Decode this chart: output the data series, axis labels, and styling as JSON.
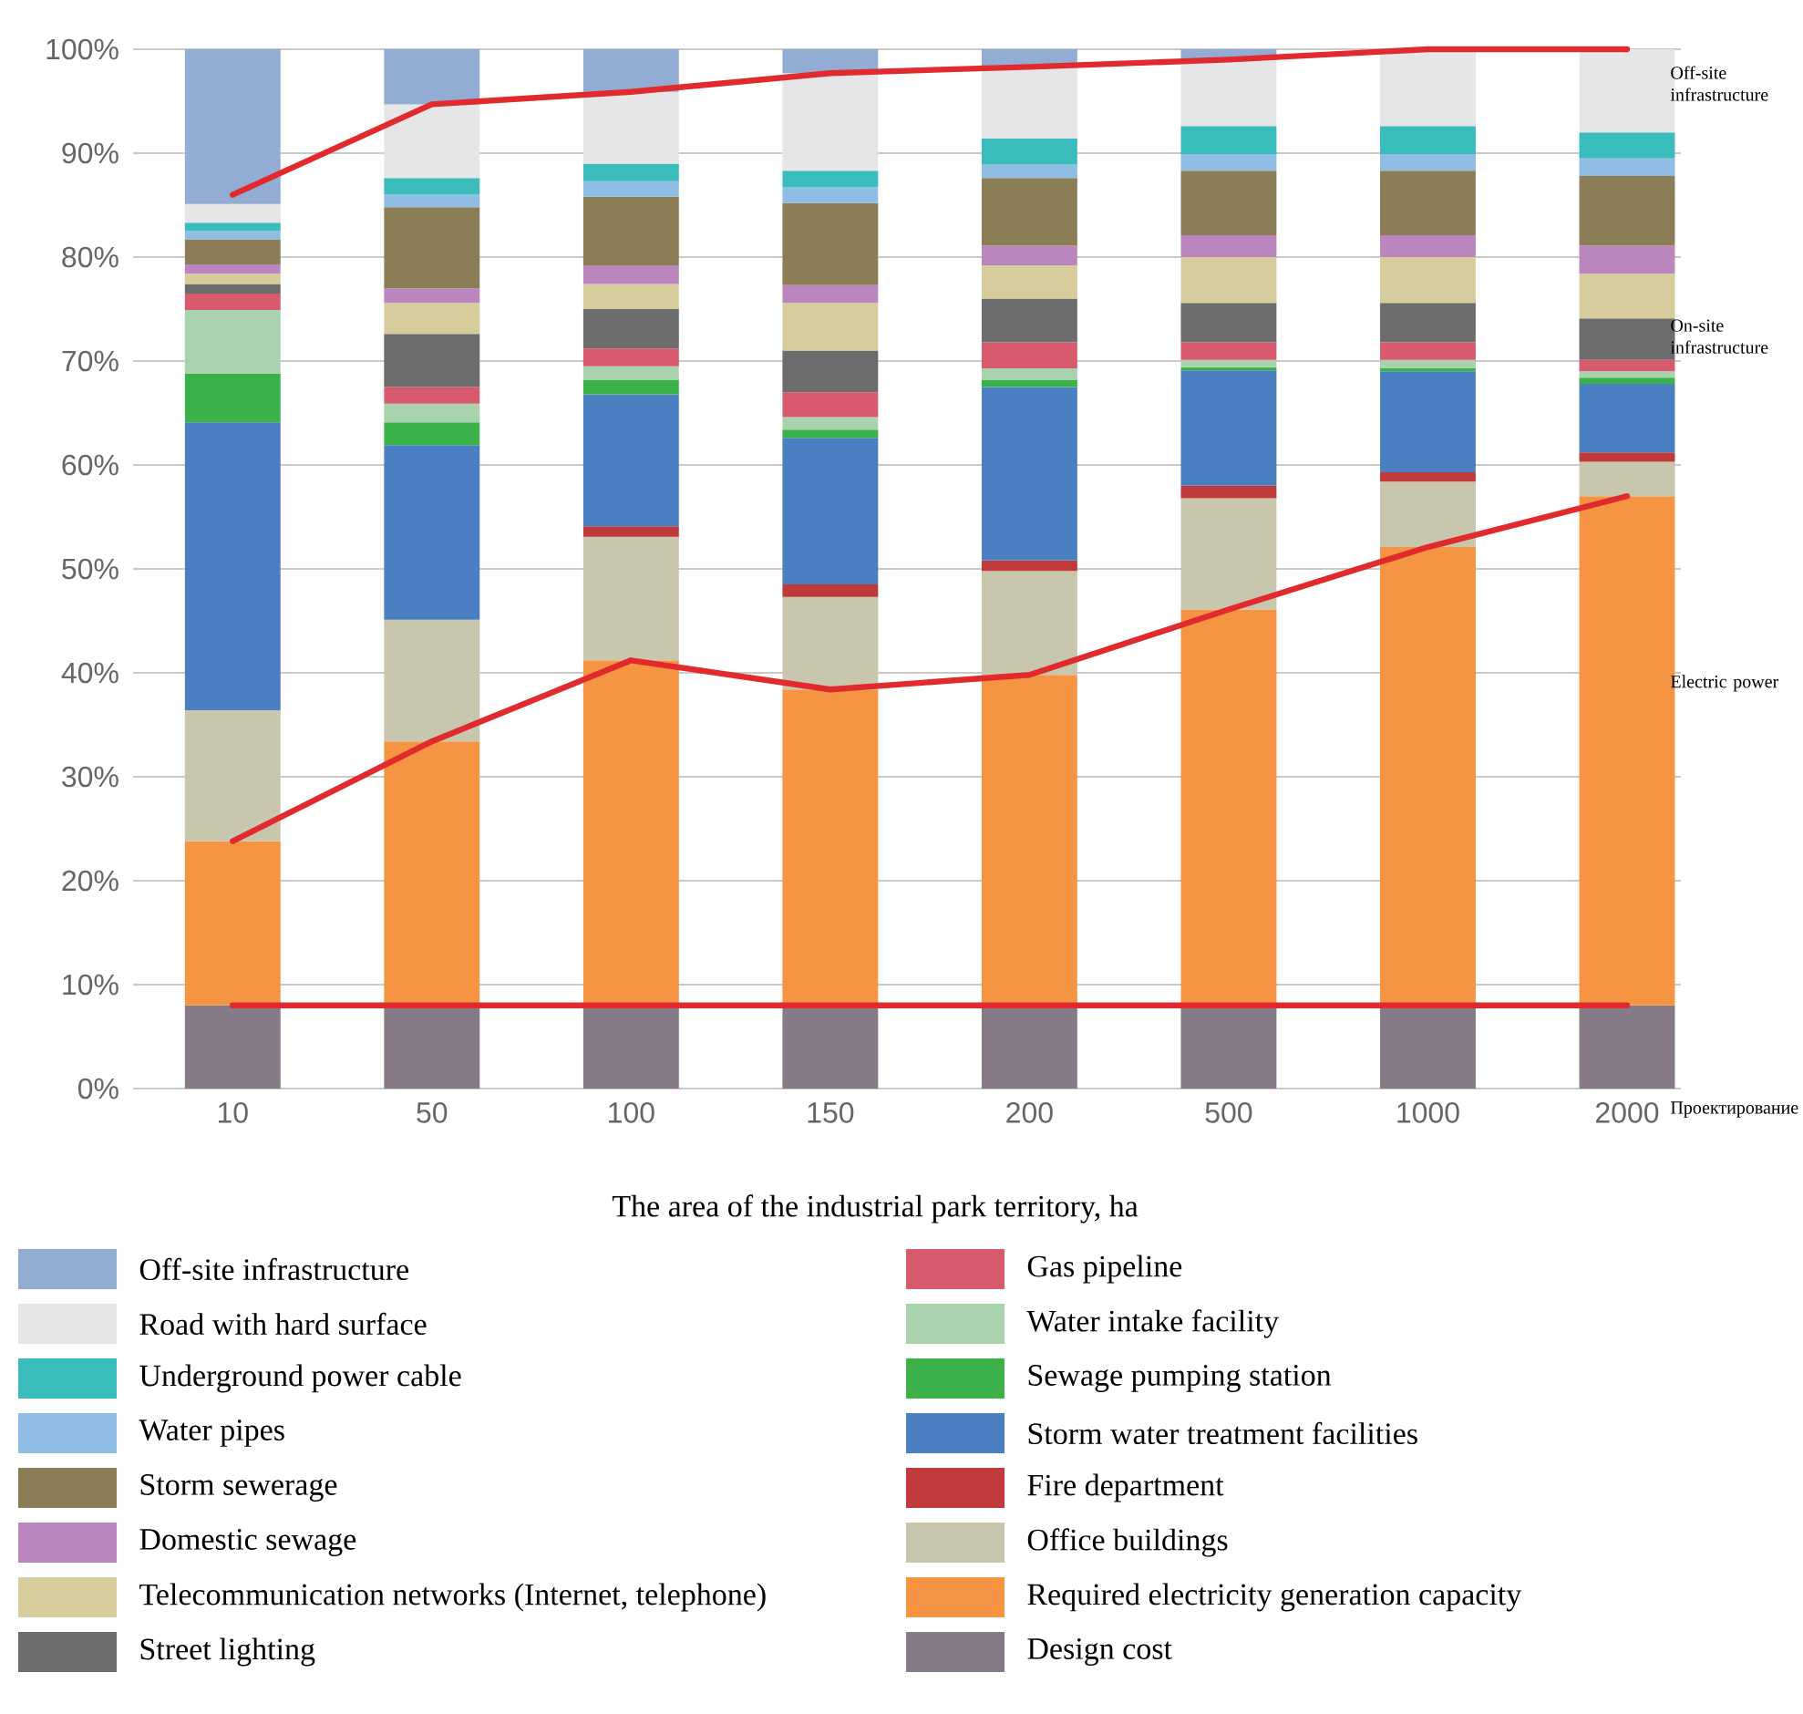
{
  "chart_data": {
    "type": "bar",
    "stacked": true,
    "xlabel": "The area of the industrial park territory, ha",
    "categories": [
      "10",
      "50",
      "100",
      "150",
      "200",
      "500",
      "1000",
      "2000"
    ],
    "ylim": [
      0,
      100
    ],
    "yticks": [
      {
        "value": 0,
        "label": "0%"
      },
      {
        "value": 10,
        "label": "10%"
      },
      {
        "value": 20,
        "label": "20%"
      },
      {
        "value": 30,
        "label": "30%"
      },
      {
        "value": 40,
        "label": "40%"
      },
      {
        "value": 50,
        "label": "50%"
      },
      {
        "value": 60,
        "label": "60%"
      },
      {
        "value": 70,
        "label": "70%"
      },
      {
        "value": 80,
        "label": "80%"
      },
      {
        "value": 90,
        "label": "90%"
      },
      {
        "value": 100,
        "label": "100%"
      }
    ],
    "grid": "y",
    "legend": "bottom",
    "series": [
      {
        "name": "Design cost",
        "color": "#857a85",
        "values": [
          8,
          8,
          8,
          8,
          8,
          8,
          8,
          8
        ]
      },
      {
        "name": "Required electricity generation capacity",
        "color": "#f59443",
        "values": [
          15.8,
          25.4,
          33.2,
          30.4,
          31.8,
          38.1,
          44.1,
          49.0
        ]
      },
      {
        "name": "Office buildings",
        "color": "#c9c6ae",
        "values": [
          12.6,
          11.7,
          11.9,
          8.9,
          10.0,
          10.7,
          6.3,
          3.3
        ]
      },
      {
        "name": "Fire department",
        "color": "#c0393b",
        "values": [
          0,
          0,
          1.0,
          1.2,
          1.0,
          1.2,
          0.9,
          0.9
        ]
      },
      {
        "name": "Storm water treatment facilities",
        "color": "#4a7fc1",
        "values": [
          27.7,
          16.8,
          12.7,
          14.1,
          16.7,
          11.1,
          9.7,
          6.6
        ]
      },
      {
        "name": "Sewage pumping station",
        "color": "#3bb14a",
        "values": [
          4.7,
          2.2,
          1.4,
          0.8,
          0.7,
          0.3,
          0.3,
          0.6
        ]
      },
      {
        "name": "Water intake facility",
        "color": "#a9d3ae",
        "values": [
          6.1,
          1.8,
          1.3,
          1.2,
          1.1,
          0.7,
          0.8,
          0.6
        ]
      },
      {
        "name": "Gas pipeline",
        "color": "#d85a6e",
        "values": [
          1.6,
          1.6,
          1.7,
          2.4,
          2.5,
          1.7,
          1.7,
          1.1
        ]
      },
      {
        "name": "Street lighting",
        "color": "#6c6c6c",
        "values": [
          0.9,
          5.1,
          3.8,
          4.0,
          4.2,
          3.8,
          3.8,
          4.0
        ]
      },
      {
        "name": "Telecommunication networks (Internet, telephone)",
        "color": "#d6cc9c",
        "values": [
          1.0,
          3.0,
          2.4,
          4.6,
          3.2,
          4.4,
          4.4,
          4.3
        ]
      },
      {
        "name": "Domestic sewage",
        "color": "#bb86bd",
        "values": [
          0.9,
          1.4,
          1.8,
          1.7,
          1.9,
          2.1,
          2.1,
          2.7
        ]
      },
      {
        "name": "Storm sewerage",
        "color": "#8b7d55",
        "values": [
          2.4,
          7.8,
          6.6,
          7.9,
          6.5,
          6.2,
          6.2,
          6.7
        ]
      },
      {
        "name": "Water pipes",
        "color": "#8fbde3",
        "values": [
          0.8,
          1.2,
          1.5,
          1.5,
          1.3,
          1.6,
          1.6,
          1.7
        ]
      },
      {
        "name": "Underground power cable",
        "color": "#3bbcbc",
        "values": [
          0.8,
          1.6,
          1.7,
          1.6,
          2.5,
          2.7,
          2.7,
          2.5
        ]
      },
      {
        "name": "Road with hard surface",
        "color": "#e6e6e8",
        "values": [
          1.8,
          7.1,
          6.9,
          9.4,
          6.9,
          6.4,
          7.4,
          8.0
        ]
      },
      {
        "name": "Off-site infrastructure",
        "color": "#93acd3",
        "values": [
          14.9,
          5.3,
          4.1,
          2.3,
          1.7,
          1.0,
          0,
          0
        ]
      },
      {
        "type": "line",
        "color": "#e02a2e",
        "values": [
          23.8,
          33.4,
          41.2,
          38.4,
          39.8,
          46.1,
          52.1,
          57.0
        ]
      },
      {
        "type": "line",
        "color": "#e02a2e",
        "values": [
          86,
          94.7,
          95.9,
          97.7,
          98.3,
          99.0,
          100,
          100
        ]
      },
      {
        "type": "line",
        "color": "#e02a2e",
        "values": [
          8,
          8,
          8,
          8,
          8,
          8,
          8,
          8
        ]
      }
    ],
    "annotations": [
      "Off-site infrastructure",
      "On-site infrastructure",
      "Electric power",
      "Проектирование"
    ]
  }
}
